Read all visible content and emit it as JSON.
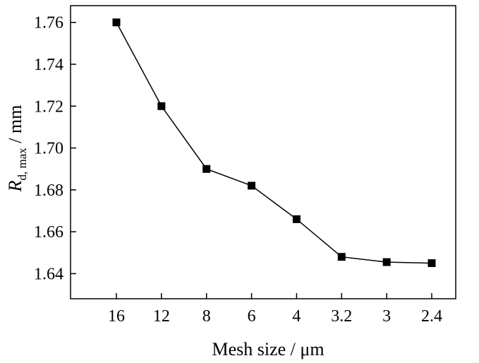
{
  "chart_data": {
    "type": "line",
    "x_axis_type": "categorical",
    "categories": [
      "16",
      "12",
      "8",
      "6",
      "4",
      "3.2",
      "3",
      "2.4"
    ],
    "series": [
      {
        "values": [
          1.76,
          1.72,
          1.69,
          1.682,
          1.666,
          1.648,
          1.6455,
          1.645
        ],
        "marker": "square",
        "color": "#000000"
      }
    ],
    "xlabel": "Mesh size / μm",
    "ylabel": {
      "symbol": "R",
      "subscript": "d, max",
      "unit": " / mm"
    },
    "ylim": [
      1.628,
      1.768
    ],
    "yticks": [
      1.64,
      1.66,
      1.68,
      1.7,
      1.72,
      1.74,
      1.76
    ],
    "ytick_labels": [
      "1.64",
      "1.66",
      "1.68",
      "1.70",
      "1.72",
      "1.74",
      "1.76"
    ],
    "grid": false,
    "legend": "none"
  }
}
